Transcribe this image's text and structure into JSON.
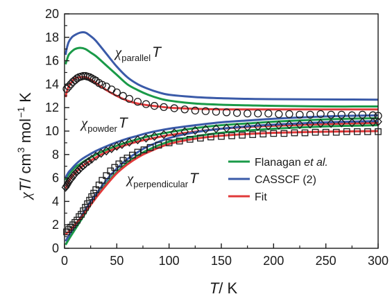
{
  "chart_data": {
    "type": "line",
    "xlabel": {
      "var": "T",
      "unit": "/ K"
    },
    "ylabel": {
      "var": "T",
      "unit_main": "/ cm",
      "unit_exp1": "3",
      "unit_mid": " mol",
      "unit_exp2": "−1",
      "unit_end": " K"
    },
    "xlim": [
      0,
      300
    ],
    "ylim": [
      0,
      20
    ],
    "xticks": [
      "0",
      "50",
      "100",
      "150",
      "200",
      "250",
      "300"
    ],
    "yticks": [
      "0",
      "2",
      "4",
      "6",
      "8",
      "10",
      "12",
      "14",
      "16",
      "18",
      "20"
    ],
    "grid": false,
    "legend_position": "right",
    "colors": {
      "flanagan": "#1a9a48",
      "casscf": "#3a5aa8",
      "fit": "#e0393a",
      "marker": "#1a1a1a"
    },
    "annotations": [
      {
        "sub": "parallel",
        "value": "T"
      },
      {
        "sub": "powder",
        "value": "T"
      },
      {
        "sub": "perpendicular",
        "value": "T"
      }
    ],
    "legend": [
      {
        "label": "Flanagan",
        "italic": " et al.",
        "color": "#1a9a48"
      },
      {
        "label": "CASSCF (2)",
        "italic": "",
        "color": "#3a5aa8"
      },
      {
        "label": "Fit",
        "italic": "",
        "color": "#e0393a"
      }
    ],
    "series": [
      {
        "name": "Flanagan et al.",
        "component": "parallel",
        "color": "#1a9a48",
        "x": [
          1,
          2,
          4,
          7,
          10,
          15,
          20,
          25,
          30,
          40,
          50,
          60,
          70,
          80,
          90,
          100,
          125,
          150,
          175,
          200,
          250,
          300
        ],
        "y": [
          15.7,
          16.0,
          16.5,
          16.8,
          17.0,
          17.1,
          17.0,
          16.7,
          16.4,
          15.6,
          14.8,
          14.0,
          13.5,
          13.1,
          12.8,
          12.6,
          12.35,
          12.25,
          12.2,
          12.15,
          12.1,
          12.1
        ]
      },
      {
        "name": "CASSCF (2)",
        "component": "parallel",
        "color": "#3a5aa8",
        "x": [
          1,
          2,
          4,
          7,
          10,
          15,
          20,
          25,
          30,
          40,
          50,
          60,
          70,
          80,
          90,
          100,
          125,
          150,
          175,
          200,
          250,
          300
        ],
        "y": [
          16.5,
          17.0,
          17.6,
          18.0,
          18.2,
          18.4,
          18.4,
          18.1,
          17.7,
          16.6,
          15.5,
          14.6,
          14.0,
          13.6,
          13.3,
          13.1,
          12.9,
          12.8,
          12.75,
          12.72,
          12.7,
          12.68
        ]
      },
      {
        "name": "Fit",
        "component": "parallel",
        "color": "#e0393a",
        "x": [
          1,
          2,
          4,
          7,
          10,
          15,
          20,
          25,
          30,
          40,
          50,
          60,
          70,
          80,
          90,
          100,
          125,
          150,
          175,
          200,
          250,
          300
        ],
        "y": [
          12.9,
          13.3,
          13.8,
          14.2,
          14.5,
          14.6,
          14.6,
          14.4,
          14.1,
          13.5,
          13.0,
          12.6,
          12.35,
          12.2,
          12.1,
          12.0,
          11.9,
          11.85,
          11.85,
          11.85,
          11.85,
          11.85
        ]
      },
      {
        "name": "Flanagan et al.",
        "component": "powder",
        "color": "#1a9a48",
        "x": [
          1,
          2,
          4,
          7,
          10,
          15,
          20,
          30,
          40,
          50,
          60,
          70,
          80,
          100,
          125,
          150,
          175,
          200,
          250,
          300
        ],
        "y": [
          5.8,
          6.0,
          6.3,
          6.6,
          6.9,
          7.2,
          7.5,
          8.0,
          8.4,
          8.75,
          9.05,
          9.3,
          9.55,
          9.9,
          10.25,
          10.5,
          10.65,
          10.8,
          11.0,
          11.1
        ]
      },
      {
        "name": "CASSCF (2)",
        "component": "powder",
        "color": "#3a5aa8",
        "x": [
          1,
          2,
          4,
          7,
          10,
          15,
          20,
          30,
          40,
          50,
          60,
          70,
          80,
          100,
          125,
          150,
          175,
          200,
          250,
          300
        ],
        "y": [
          6.0,
          6.2,
          6.5,
          6.8,
          7.1,
          7.5,
          7.8,
          8.3,
          8.7,
          9.05,
          9.35,
          9.6,
          9.85,
          10.2,
          10.5,
          10.75,
          10.9,
          11.05,
          11.25,
          11.35
        ]
      },
      {
        "name": "Fit",
        "component": "powder",
        "color": "#e0393a",
        "x": [
          1,
          2,
          4,
          7,
          10,
          15,
          20,
          30,
          40,
          50,
          60,
          70,
          80,
          100,
          125,
          150,
          175,
          200,
          250,
          300
        ],
        "y": [
          5.1,
          5.3,
          5.7,
          6.1,
          6.4,
          6.85,
          7.2,
          7.75,
          8.2,
          8.55,
          8.85,
          9.1,
          9.3,
          9.65,
          9.95,
          10.2,
          10.35,
          10.45,
          10.6,
          10.7
        ]
      },
      {
        "name": "Flanagan et al.",
        "component": "perpendicular",
        "color": "#1a9a48",
        "x": [
          1,
          5,
          10,
          15,
          20,
          25,
          30,
          40,
          50,
          60,
          70,
          80,
          100,
          125,
          150,
          175,
          200,
          250,
          300
        ],
        "y": [
          0.3,
          0.9,
          1.6,
          2.3,
          3.0,
          3.7,
          4.3,
          5.5,
          6.5,
          7.3,
          7.9,
          8.4,
          9.1,
          9.55,
          9.85,
          10.05,
          10.2,
          10.4,
          10.5
        ]
      },
      {
        "name": "CASSCF (2)",
        "component": "perpendicular",
        "color": "#3a5aa8",
        "x": [
          1,
          5,
          10,
          15,
          20,
          25,
          30,
          40,
          50,
          60,
          70,
          80,
          100,
          125,
          150,
          175,
          200,
          250,
          300
        ],
        "y": [
          0.6,
          1.2,
          1.9,
          2.6,
          3.3,
          4.0,
          4.6,
          5.8,
          6.8,
          7.6,
          8.2,
          8.7,
          9.4,
          9.9,
          10.2,
          10.4,
          10.55,
          10.75,
          10.85
        ]
      },
      {
        "name": "Fit",
        "component": "perpendicular",
        "color": "#e0393a",
        "x": [
          1,
          5,
          10,
          15,
          20,
          25,
          30,
          40,
          50,
          60,
          70,
          80,
          100,
          125,
          150,
          175,
          200,
          250,
          300
        ],
        "y": [
          1.2,
          1.5,
          2.0,
          2.55,
          3.1,
          3.7,
          4.3,
          5.4,
          6.4,
          7.15,
          7.75,
          8.2,
          8.9,
          9.35,
          9.6,
          9.75,
          9.85,
          9.95,
          10.0
        ]
      }
    ],
    "experimental": [
      {
        "component": "parallel",
        "marker": "circle",
        "x": [
          2,
          4,
          6,
          8,
          10,
          12,
          14,
          16,
          18,
          20,
          22,
          24,
          26,
          28,
          30,
          33,
          36,
          40,
          45,
          50,
          56,
          62,
          70,
          78,
          86,
          95,
          105,
          115,
          125,
          135,
          145,
          155,
          165,
          175,
          185,
          195,
          205,
          215,
          225,
          235,
          245,
          255,
          265,
          275,
          285,
          295,
          300
        ],
        "y": [
          13.6,
          13.8,
          14.0,
          14.2,
          14.35,
          14.5,
          14.6,
          14.65,
          14.7,
          14.7,
          14.65,
          14.6,
          14.5,
          14.4,
          14.3,
          14.1,
          13.95,
          13.8,
          13.55,
          13.3,
          13.0,
          12.75,
          12.5,
          12.3,
          12.15,
          12.05,
          11.95,
          11.85,
          11.75,
          11.7,
          11.65,
          11.6,
          11.55,
          11.5,
          11.5,
          11.5,
          11.45,
          11.45,
          11.4,
          11.4,
          11.45,
          11.4,
          11.4,
          11.35,
          11.4,
          11.35,
          11.3
        ]
      },
      {
        "component": "powder",
        "marker": "diamond",
        "x": [
          1,
          2,
          3,
          4,
          5,
          6,
          7,
          8,
          9,
          10,
          12,
          14,
          16,
          18,
          20,
          23,
          26,
          30,
          35,
          40,
          45,
          50,
          55,
          62,
          70,
          78,
          86,
          95,
          105,
          115,
          125,
          135,
          145,
          155,
          165,
          175,
          185,
          195,
          205,
          215,
          225,
          235,
          245,
          255,
          265,
          275,
          285,
          295,
          300
        ],
        "y": [
          5.2,
          5.35,
          5.5,
          5.65,
          5.8,
          5.9,
          6.0,
          6.15,
          6.25,
          6.35,
          6.55,
          6.7,
          6.9,
          7.05,
          7.2,
          7.4,
          7.6,
          7.85,
          8.1,
          8.3,
          8.5,
          8.7,
          8.85,
          9.05,
          9.25,
          9.4,
          9.55,
          9.7,
          9.85,
          9.95,
          10.05,
          10.15,
          10.2,
          10.25,
          10.3,
          10.35,
          10.4,
          10.45,
          10.5,
          10.55,
          10.55,
          10.6,
          10.65,
          10.65,
          10.7,
          10.7,
          10.75,
          10.75,
          10.8
        ]
      },
      {
        "component": "perpendicular",
        "marker": "square",
        "x": [
          2,
          4,
          6,
          8,
          10,
          12,
          14,
          16,
          18,
          20,
          22,
          24,
          26,
          28,
          30,
          33,
          36,
          40,
          44,
          48,
          52,
          56,
          60,
          65,
          70,
          76,
          82,
          90,
          100,
          110,
          120,
          130,
          140,
          150,
          160,
          170,
          180,
          190,
          200,
          210,
          220,
          230,
          240,
          250,
          260,
          270,
          280,
          290,
          300
        ],
        "y": [
          1.4,
          1.6,
          1.8,
          2.0,
          2.2,
          2.4,
          2.7,
          2.9,
          3.2,
          3.5,
          3.8,
          4.1,
          4.4,
          4.7,
          5.0,
          5.4,
          5.8,
          6.2,
          6.6,
          6.9,
          7.2,
          7.5,
          7.7,
          7.95,
          8.2,
          8.4,
          8.6,
          8.8,
          9.0,
          9.15,
          9.3,
          9.4,
          9.5,
          9.55,
          9.6,
          9.65,
          9.7,
          9.75,
          9.8,
          9.8,
          9.85,
          9.85,
          9.9,
          9.9,
          9.9,
          9.95,
          9.95,
          9.95,
          9.95
        ]
      }
    ]
  }
}
